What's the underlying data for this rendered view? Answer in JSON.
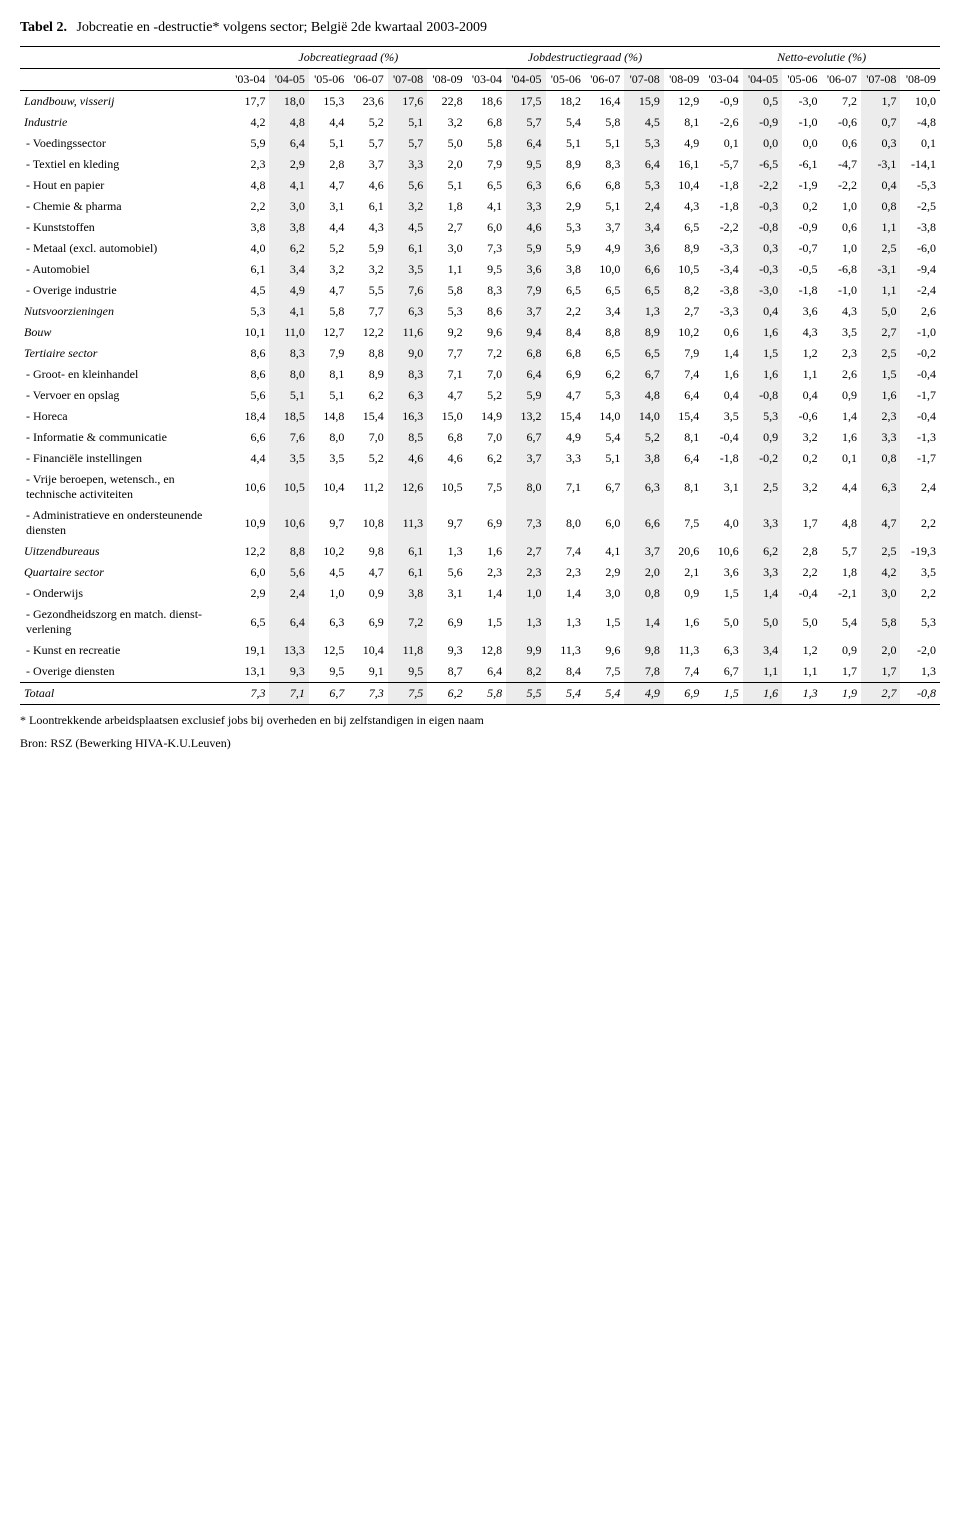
{
  "caption": {
    "label": "Tabel 2.",
    "text": "Jobcreatie en -destructie* volgens sector; België 2de kwartaal 2003-2009"
  },
  "groups": [
    "Jobcreatiegraad (%)",
    "Jobdestructiegraad (%)",
    "Netto-evolutie (%)"
  ],
  "years": [
    "'03-04",
    "'04-05",
    "'05-06",
    "'06-07",
    "'07-08",
    "'08-09",
    "'03-04",
    "'04-05",
    "'05-06",
    "'06-07",
    "'07-08",
    "'08-09",
    "'03-04",
    "'04-05",
    "'05-06",
    "'06-07",
    "'07-08",
    "'08-09"
  ],
  "shade_cols": [
    1,
    4,
    7,
    10,
    13,
    16
  ],
  "rows": [
    {
      "cls": "sector",
      "label": "Landbouw, visserij",
      "v": [
        "17,7",
        "18,0",
        "15,3",
        "23,6",
        "17,6",
        "22,8",
        "18,6",
        "17,5",
        "18,2",
        "16,4",
        "15,9",
        "12,9",
        "-0,9",
        "0,5",
        "-3,0",
        "7,2",
        "1,7",
        "10,0"
      ]
    },
    {
      "cls": "sector",
      "label": "Industrie",
      "v": [
        "4,2",
        "4,8",
        "4,4",
        "5,2",
        "5,1",
        "3,2",
        "6,8",
        "5,7",
        "5,4",
        "5,8",
        "4,5",
        "8,1",
        "-2,6",
        "-0,9",
        "-1,0",
        "-0,6",
        "0,7",
        "-4,8"
      ]
    },
    {
      "cls": "sub",
      "label": "- Voedingssector",
      "v": [
        "5,9",
        "6,4",
        "5,1",
        "5,7",
        "5,7",
        "5,0",
        "5,8",
        "6,4",
        "5,1",
        "5,1",
        "5,3",
        "4,9",
        "0,1",
        "0,0",
        "0,0",
        "0,6",
        "0,3",
        "0,1"
      ]
    },
    {
      "cls": "sub",
      "label": "- Textiel en kleding",
      "v": [
        "2,3",
        "2,9",
        "2,8",
        "3,7",
        "3,3",
        "2,0",
        "7,9",
        "9,5",
        "8,9",
        "8,3",
        "6,4",
        "16,1",
        "-5,7",
        "-6,5",
        "-6,1",
        "-4,7",
        "-3,1",
        "-14,1"
      ]
    },
    {
      "cls": "sub",
      "label": "- Hout en papier",
      "v": [
        "4,8",
        "4,1",
        "4,7",
        "4,6",
        "5,6",
        "5,1",
        "6,5",
        "6,3",
        "6,6",
        "6,8",
        "5,3",
        "10,4",
        "-1,8",
        "-2,2",
        "-1,9",
        "-2,2",
        "0,4",
        "-5,3"
      ]
    },
    {
      "cls": "sub",
      "label": "- Chemie & pharma",
      "v": [
        "2,2",
        "3,0",
        "3,1",
        "6,1",
        "3,2",
        "1,8",
        "4,1",
        "3,3",
        "2,9",
        "5,1",
        "2,4",
        "4,3",
        "-1,8",
        "-0,3",
        "0,2",
        "1,0",
        "0,8",
        "-2,5"
      ]
    },
    {
      "cls": "sub",
      "label": "- Kunststoffen",
      "v": [
        "3,8",
        "3,8",
        "4,4",
        "4,3",
        "4,5",
        "2,7",
        "6,0",
        "4,6",
        "5,3",
        "3,7",
        "3,4",
        "6,5",
        "-2,2",
        "-0,8",
        "-0,9",
        "0,6",
        "1,1",
        "-3,8"
      ]
    },
    {
      "cls": "sub",
      "label": "- Metaal (excl. automobiel)",
      "v": [
        "4,0",
        "6,2",
        "5,2",
        "5,9",
        "6,1",
        "3,0",
        "7,3",
        "5,9",
        "5,9",
        "4,9",
        "3,6",
        "8,9",
        "-3,3",
        "0,3",
        "-0,7",
        "1,0",
        "2,5",
        "-6,0"
      ]
    },
    {
      "cls": "sub",
      "label": "- Automobiel",
      "v": [
        "6,1",
        "3,4",
        "3,2",
        "3,2",
        "3,5",
        "1,1",
        "9,5",
        "3,6",
        "3,8",
        "10,0",
        "6,6",
        "10,5",
        "-3,4",
        "-0,3",
        "-0,5",
        "-6,8",
        "-3,1",
        "-9,4"
      ]
    },
    {
      "cls": "sub",
      "label": "- Overige industrie",
      "v": [
        "4,5",
        "4,9",
        "4,7",
        "5,5",
        "7,6",
        "5,8",
        "8,3",
        "7,9",
        "6,5",
        "6,5",
        "6,5",
        "8,2",
        "-3,8",
        "-3,0",
        "-1,8",
        "-1,0",
        "1,1",
        "-2,4"
      ]
    },
    {
      "cls": "sector",
      "label": "Nutsvoorzieningen",
      "v": [
        "5,3",
        "4,1",
        "5,8",
        "7,7",
        "6,3",
        "5,3",
        "8,6",
        "3,7",
        "2,2",
        "3,4",
        "1,3",
        "2,7",
        "-3,3",
        "0,4",
        "3,6",
        "4,3",
        "5,0",
        "2,6"
      ]
    },
    {
      "cls": "sector",
      "label": "Bouw",
      "v": [
        "10,1",
        "11,0",
        "12,7",
        "12,2",
        "11,6",
        "9,2",
        "9,6",
        "9,4",
        "8,4",
        "8,8",
        "8,9",
        "10,2",
        "0,6",
        "1,6",
        "4,3",
        "3,5",
        "2,7",
        "-1,0"
      ]
    },
    {
      "cls": "sector",
      "label": "Tertiaire sector",
      "v": [
        "8,6",
        "8,3",
        "7,9",
        "8,8",
        "9,0",
        "7,7",
        "7,2",
        "6,8",
        "6,8",
        "6,5",
        "6,5",
        "7,9",
        "1,4",
        "1,5",
        "1,2",
        "2,3",
        "2,5",
        "-0,2"
      ]
    },
    {
      "cls": "sub",
      "label": "- Groot- en kleinhandel",
      "v": [
        "8,6",
        "8,0",
        "8,1",
        "8,9",
        "8,3",
        "7,1",
        "7,0",
        "6,4",
        "6,9",
        "6,2",
        "6,7",
        "7,4",
        "1,6",
        "1,6",
        "1,1",
        "2,6",
        "1,5",
        "-0,4"
      ]
    },
    {
      "cls": "sub",
      "label": "- Vervoer en opslag",
      "v": [
        "5,6",
        "5,1",
        "5,1",
        "6,2",
        "6,3",
        "4,7",
        "5,2",
        "5,9",
        "4,7",
        "5,3",
        "4,8",
        "6,4",
        "0,4",
        "-0,8",
        "0,4",
        "0,9",
        "1,6",
        "-1,7"
      ]
    },
    {
      "cls": "sub",
      "label": "- Horeca",
      "v": [
        "18,4",
        "18,5",
        "14,8",
        "15,4",
        "16,3",
        "15,0",
        "14,9",
        "13,2",
        "15,4",
        "14,0",
        "14,0",
        "15,4",
        "3,5",
        "5,3",
        "-0,6",
        "1,4",
        "2,3",
        "-0,4"
      ]
    },
    {
      "cls": "sub",
      "label": "- Informatie & communicatie",
      "v": [
        "6,6",
        "7,6",
        "8,0",
        "7,0",
        "8,5",
        "6,8",
        "7,0",
        "6,7",
        "4,9",
        "5,4",
        "5,2",
        "8,1",
        "-0,4",
        "0,9",
        "3,2",
        "1,6",
        "3,3",
        "-1,3"
      ]
    },
    {
      "cls": "sub",
      "label": "- Financiële instellingen",
      "v": [
        "4,4",
        "3,5",
        "3,5",
        "5,2",
        "4,6",
        "4,6",
        "6,2",
        "3,7",
        "3,3",
        "5,1",
        "3,8",
        "6,4",
        "-1,8",
        "-0,2",
        "0,2",
        "0,1",
        "0,8",
        "-1,7"
      ]
    },
    {
      "cls": "sub",
      "label": "- Vrije beroepen, wetensch., en technische activiteiten",
      "v": [
        "10,6",
        "10,5",
        "10,4",
        "11,2",
        "12,6",
        "10,5",
        "7,5",
        "8,0",
        "7,1",
        "6,7",
        "6,3",
        "8,1",
        "3,1",
        "2,5",
        "3,2",
        "4,4",
        "6,3",
        "2,4"
      ]
    },
    {
      "cls": "sub",
      "label": "- Administratieve en ondersteunende diensten",
      "v": [
        "10,9",
        "10,6",
        "9,7",
        "10,8",
        "11,3",
        "9,7",
        "6,9",
        "7,3",
        "8,0",
        "6,0",
        "6,6",
        "7,5",
        "4,0",
        "3,3",
        "1,7",
        "4,8",
        "4,7",
        "2,2"
      ]
    },
    {
      "cls": "sector",
      "label": "Uitzendbureaus",
      "v": [
        "12,2",
        "8,8",
        "10,2",
        "9,8",
        "6,1",
        "1,3",
        "1,6",
        "2,7",
        "7,4",
        "4,1",
        "3,7",
        "20,6",
        "10,6",
        "6,2",
        "2,8",
        "5,7",
        "2,5",
        "-19,3"
      ]
    },
    {
      "cls": "sector",
      "label": "Quartaire sector",
      "v": [
        "6,0",
        "5,6",
        "4,5",
        "4,7",
        "6,1",
        "5,6",
        "2,3",
        "2,3",
        "2,3",
        "2,9",
        "2,0",
        "2,1",
        "3,6",
        "3,3",
        "2,2",
        "1,8",
        "4,2",
        "3,5"
      ]
    },
    {
      "cls": "sub",
      "label": "- Onderwijs",
      "v": [
        "2,9",
        "2,4",
        "1,0",
        "0,9",
        "3,8",
        "3,1",
        "1,4",
        "1,0",
        "1,4",
        "3,0",
        "0,8",
        "0,9",
        "1,5",
        "1,4",
        "-0,4",
        "-2,1",
        "3,0",
        "2,2"
      ]
    },
    {
      "cls": "sub",
      "label": "- Gezondheidszorg en match. dienst-verlening",
      "v": [
        "6,5",
        "6,4",
        "6,3",
        "6,9",
        "7,2",
        "6,9",
        "1,5",
        "1,3",
        "1,3",
        "1,5",
        "1,4",
        "1,6",
        "5,0",
        "5,0",
        "5,0",
        "5,4",
        "5,8",
        "5,3"
      ]
    },
    {
      "cls": "sub",
      "label": "- Kunst en recreatie",
      "v": [
        "19,1",
        "13,3",
        "12,5",
        "10,4",
        "11,8",
        "9,3",
        "12,8",
        "9,9",
        "11,3",
        "9,6",
        "9,8",
        "11,3",
        "6,3",
        "3,4",
        "1,2",
        "0,9",
        "2,0",
        "-2,0"
      ]
    },
    {
      "cls": "sub",
      "label": "- Overige diensten",
      "v": [
        "13,1",
        "9,3",
        "9,5",
        "9,1",
        "9,5",
        "8,7",
        "6,4",
        "8,2",
        "8,4",
        "7,5",
        "7,8",
        "7,4",
        "6,7",
        "1,1",
        "1,1",
        "1,7",
        "1,7",
        "1,3"
      ]
    },
    {
      "cls": "total",
      "label": "Totaal",
      "v": [
        "7,3",
        "7,1",
        "6,7",
        "7,3",
        "7,5",
        "6,2",
        "5,8",
        "5,5",
        "5,4",
        "5,4",
        "4,9",
        "6,9",
        "1,5",
        "1,6",
        "1,3",
        "1,9",
        "2,7",
        "-0,8"
      ]
    }
  ],
  "footnote_star": "*   Loontrekkende arbeidsplaatsen exclusief jobs bij overheden en bij zelfstandigen in eigen naam",
  "footnote_src": "Bron: RSZ (Bewerking HIVA-K.U.Leuven)"
}
